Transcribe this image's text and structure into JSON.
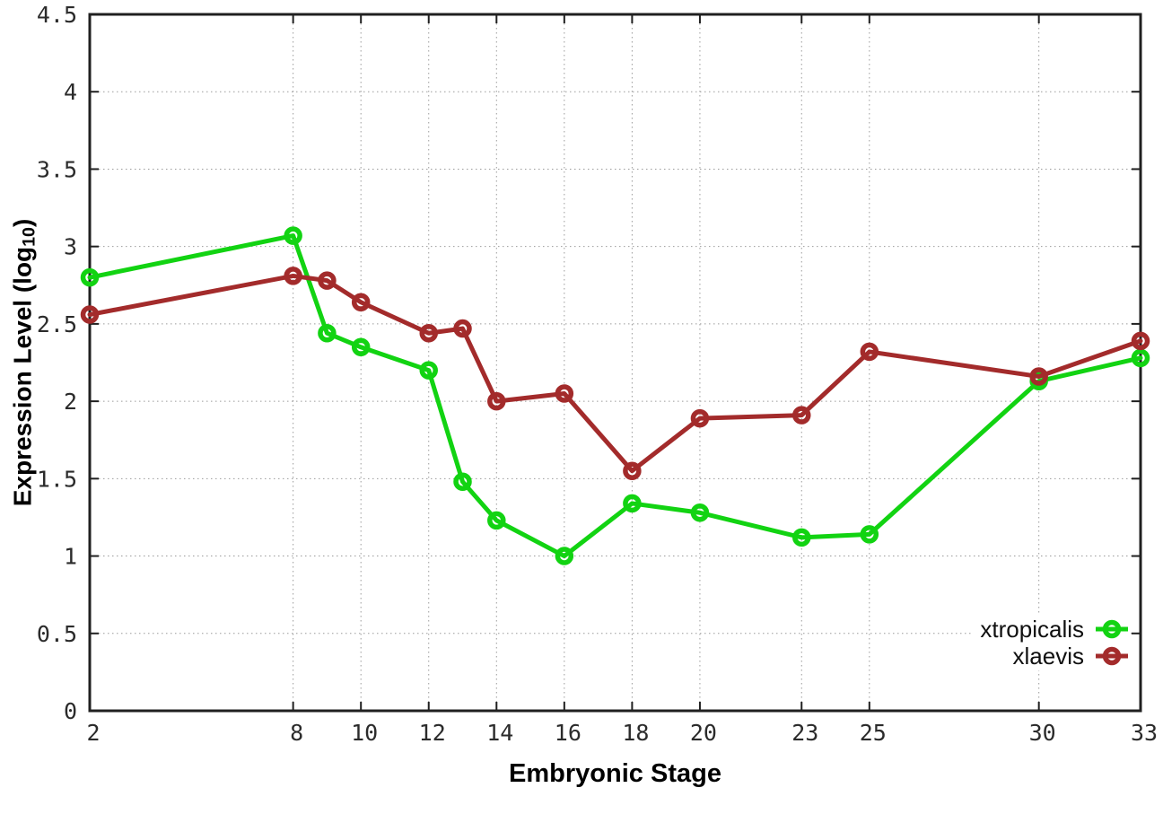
{
  "chart_data": {
    "type": "line",
    "title": "",
    "xlabel": "Embryonic Stage",
    "ylabel": "Expression Level (log10)",
    "ylabel_parts": {
      "main": "Expression Level (log",
      "sub": "10",
      "end": ")"
    },
    "x": [
      2,
      8,
      9,
      10,
      12,
      13,
      14,
      16,
      18,
      20,
      23,
      25,
      30,
      33
    ],
    "series": [
      {
        "name": "xtropicalis",
        "color": "#12d312",
        "values": [
          2.8,
          3.07,
          2.44,
          2.35,
          2.2,
          1.48,
          1.23,
          1.0,
          1.34,
          1.28,
          1.12,
          1.14,
          2.13,
          2.28
        ]
      },
      {
        "name": "xlaevis",
        "color": "#a32b2b",
        "values": [
          2.56,
          2.81,
          2.78,
          2.64,
          2.44,
          2.47,
          2.0,
          2.05,
          1.55,
          1.89,
          1.91,
          2.32,
          2.16,
          2.39
        ]
      }
    ],
    "xlim": [
      2,
      33
    ],
    "ylim": [
      0,
      4.5
    ],
    "xticks": [
      2,
      8,
      10,
      12,
      14,
      16,
      18,
      20,
      23,
      25,
      30,
      33
    ],
    "xtick_labels": [
      "2",
      "8",
      "10",
      "12",
      "14",
      "16",
      "18",
      "20",
      "23",
      "25",
      "30",
      "33"
    ],
    "yticks": [
      0,
      0.5,
      1,
      1.5,
      2,
      2.5,
      3,
      3.5,
      4,
      4.5
    ],
    "ytick_labels": [
      "0",
      "0.5",
      "1",
      "1.5",
      "2",
      "2.5",
      "3",
      "3.5",
      "4",
      "4.5"
    ],
    "grid": true,
    "legend_position": "bottom-right",
    "marker": "open-circle",
    "colors": {
      "axis": "#202020",
      "gridline": "#9b9b9b",
      "background": "#ffffff"
    }
  }
}
